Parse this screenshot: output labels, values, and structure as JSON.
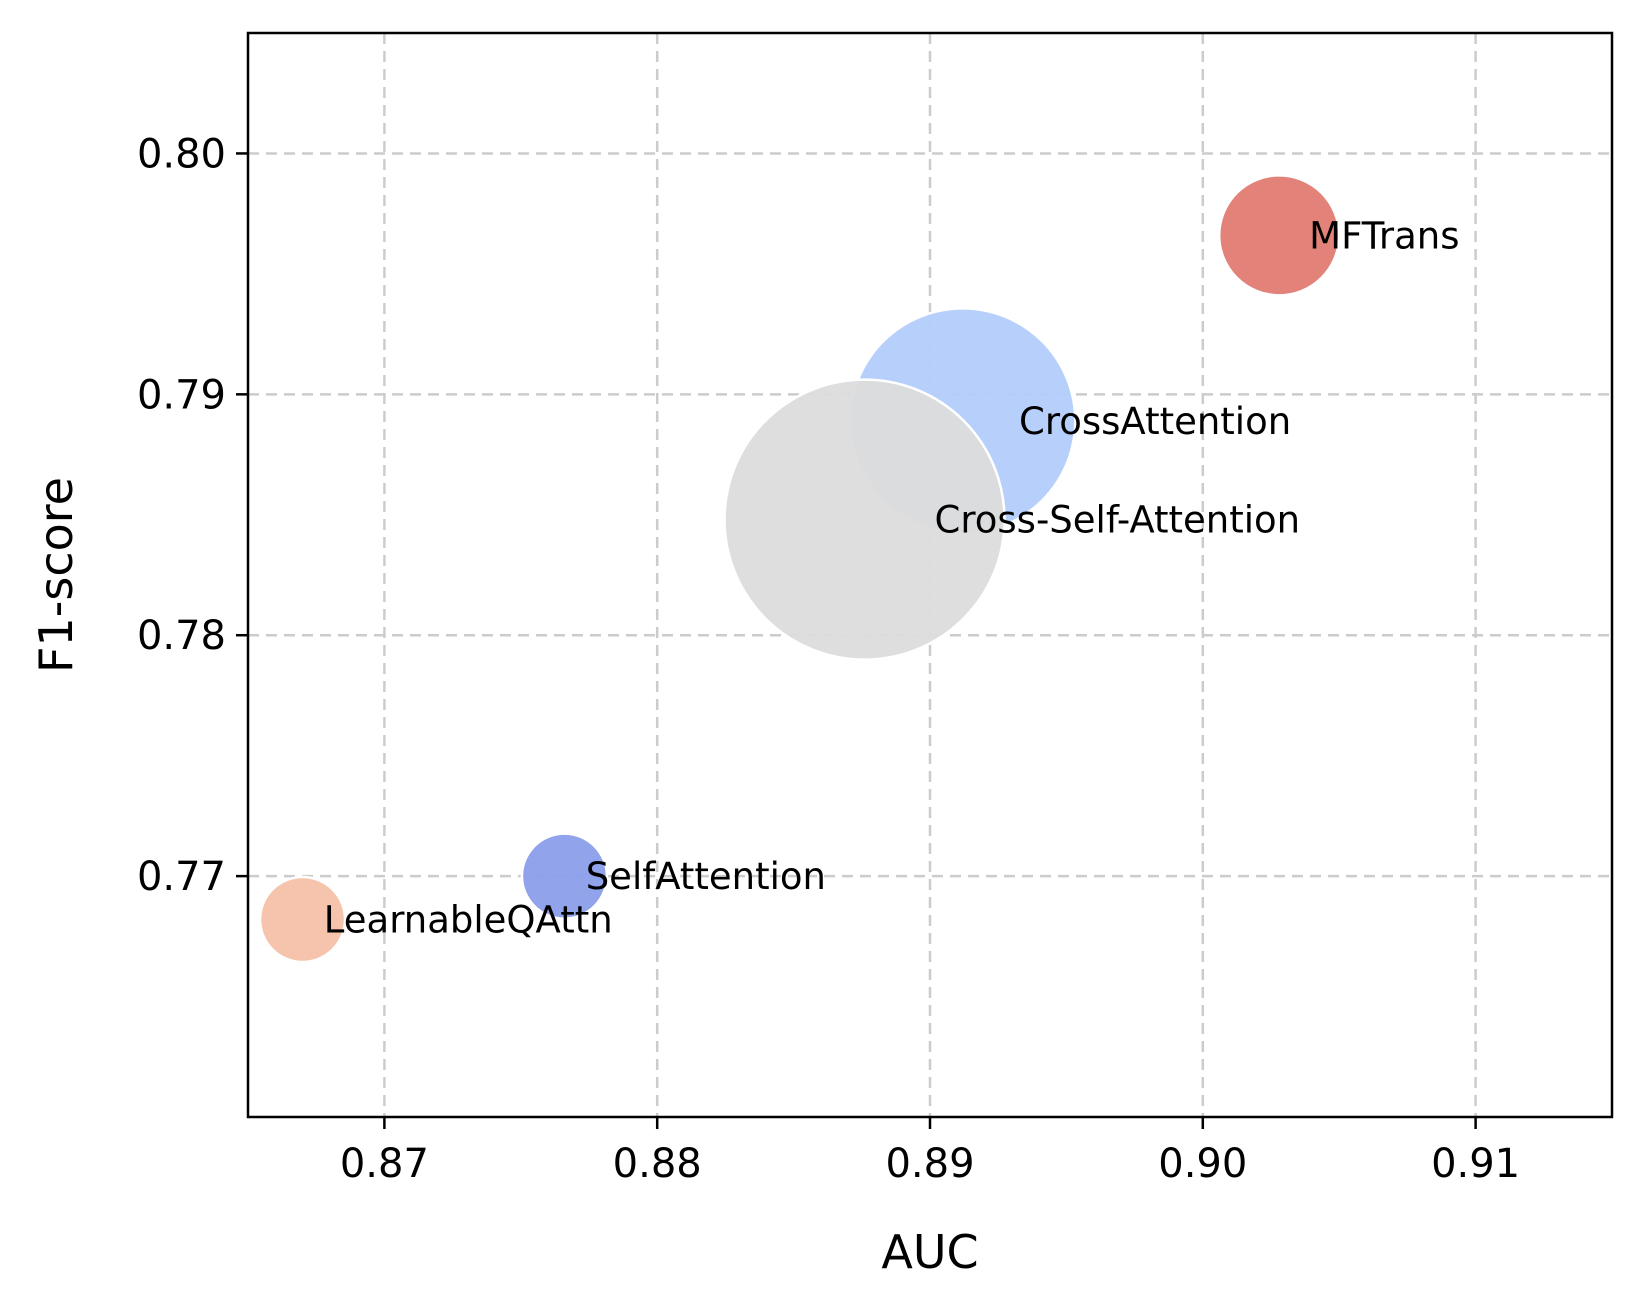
{
  "chart_data": {
    "type": "scatter",
    "variant": "bubble",
    "title": "",
    "xlabel": "AUC",
    "ylabel": "F1-score",
    "xlim": [
      0.865,
      0.915
    ],
    "ylim": [
      0.76,
      0.805
    ],
    "xticks": [
      0.87,
      0.88,
      0.89,
      0.9,
      0.91
    ],
    "xtick_labels": [
      "0.87",
      "0.88",
      "0.89",
      "0.90",
      "0.91"
    ],
    "yticks": [
      0.77,
      0.78,
      0.79,
      0.8
    ],
    "ytick_labels": [
      "0.77",
      "0.78",
      "0.79",
      "0.80"
    ],
    "grid": true,
    "points": [
      {
        "label": "CrossAttention",
        "x": 0.8912,
        "y": 0.7889,
        "size": 4.5,
        "color": "#b3cdfb"
      },
      {
        "label": "Cross-Self-Attention",
        "x": 0.8876,
        "y": 0.7848,
        "size": 5.6,
        "color": "#dcdcdc"
      },
      {
        "label": "MFTrans",
        "x": 0.9028,
        "y": 0.7966,
        "size": 2.4,
        "color": "#e07b71"
      },
      {
        "label": "SelfAttention",
        "x": 0.8766,
        "y": 0.77,
        "size": 1.7,
        "color": "#8b9eea"
      },
      {
        "label": "LearnableQAttn",
        "x": 0.867,
        "y": 0.7682,
        "size": 1.7,
        "color": "#f6c1a8"
      }
    ]
  }
}
